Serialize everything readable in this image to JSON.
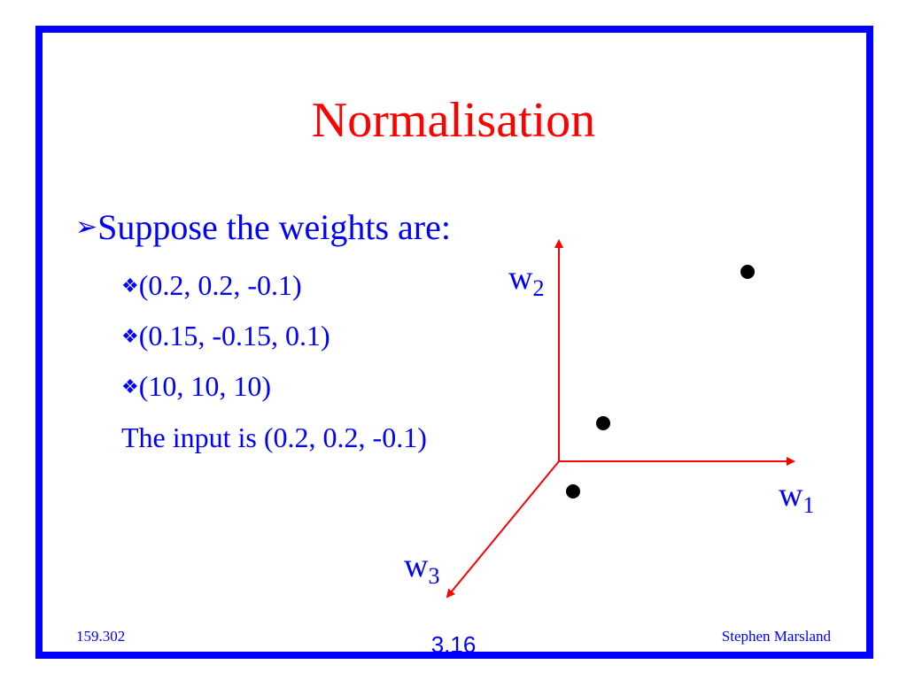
{
  "slide": {
    "title": "Normalisation",
    "bullet": "Suppose the weights are:",
    "sub_items": [
      "(0.2, 0.2, -0.1)",
      "(0.15, -0.15, 0.1)",
      "(10, 10, 10)"
    ],
    "input_text": "The input is (0.2, 0.2, -0.1)"
  },
  "diagram": {
    "axis_labels": {
      "w1": {
        "base": "w",
        "sub": "1"
      },
      "w2": {
        "base": "w",
        "sub": "2"
      },
      "w3": {
        "base": "w",
        "sub": "3"
      }
    },
    "point_count": 3,
    "axis_color": "#ff0000",
    "point_color": "#000000"
  },
  "footer": {
    "course": "159.302",
    "page": "3.16",
    "author": "Stephen Marsland"
  },
  "colors": {
    "frame": "#0000ff",
    "title": "#ff0000",
    "text": "#0000ff"
  }
}
